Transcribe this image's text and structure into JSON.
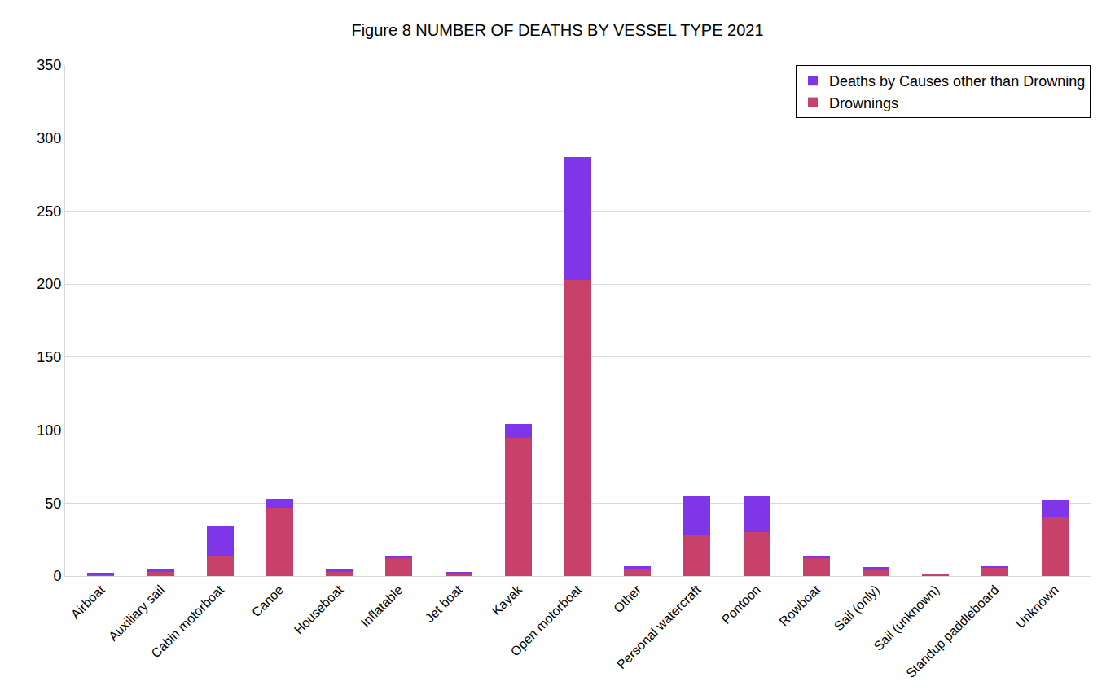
{
  "chart_data": {
    "type": "bar",
    "title": "Figure 8 NUMBER OF DEATHS BY VESSEL TYPE 2021",
    "stacked": true,
    "grid": true,
    "legend": "top-right",
    "categories": [
      "Airboat",
      "Auxiliary sail",
      "Cabin motorboat",
      "Canoe",
      "Houseboat",
      "Inflatable",
      "Jet boat",
      "Kayak",
      "Open motorboat",
      "Other",
      "Personal watercraft",
      "Pontoon",
      "Rowboat",
      "Sail (only)",
      "Sail (unknown)",
      "Standup paddleboard",
      "Unknown"
    ],
    "series": [
      {
        "name": "Drownings",
        "color": "#c8416a",
        "values": [
          1,
          3,
          14,
          47,
          3,
          12,
          2,
          95,
          203,
          5,
          28,
          30,
          12,
          4,
          1,
          6,
          40
        ]
      },
      {
        "name": "Deaths by Causes other than Drowning",
        "color": "#7f35e8",
        "values": [
          1,
          2,
          20,
          6,
          2,
          2,
          1,
          9,
          84,
          2,
          27,
          25,
          2,
          2,
          0,
          1,
          12
        ]
      }
    ],
    "ylim": [
      0,
      350
    ],
    "yticks": [
      0,
      50,
      100,
      150,
      200,
      250,
      300,
      350
    ]
  }
}
